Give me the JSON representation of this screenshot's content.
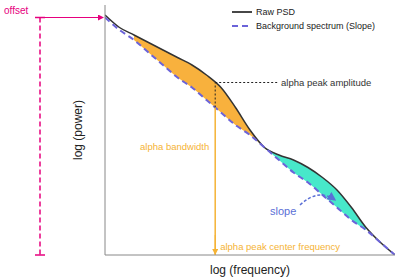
{
  "chart_data": {
    "type": "line",
    "x_label": "log (frequency)",
    "y_label": "log (power)",
    "x": [
      0,
      5,
      10,
      15,
      20,
      25,
      30,
      35,
      40,
      45,
      50,
      55,
      60,
      65,
      70,
      75,
      80,
      85,
      90,
      95,
      100
    ],
    "series": [
      {
        "name": "Raw PSD",
        "color": "#333333",
        "line_style": "solid",
        "values": [
          96,
          91,
          88,
          85,
          82,
          79,
          76,
          72,
          67,
          59,
          50,
          43,
          40,
          38,
          35,
          31,
          26,
          19,
          11,
          5,
          0
        ]
      },
      {
        "name": "Background spectrum (Slope)",
        "color": "#6b63d9",
        "line_style": "dashed",
        "values": [
          95,
          90,
          86,
          81,
          76,
          71,
          67,
          62,
          57,
          52,
          48,
          43,
          38,
          33,
          29,
          24,
          19,
          14,
          10,
          5,
          0
        ]
      }
    ],
    "xlim": [
      0,
      100
    ],
    "ylim": [
      0,
      100
    ],
    "tick_labels": false,
    "legend": "upper right",
    "bands": [
      {
        "from": 10,
        "to": 55,
        "color": "#f7a928"
      },
      {
        "from": 55,
        "to": 90,
        "color": "#33e6c4"
      }
    ],
    "alpha_peak": {
      "x": 38,
      "y": 69
    },
    "annotations": {
      "offset": "offset",
      "peak_amplitude": "alpha peak amplitude",
      "bandwidth": "alpha bandwidth",
      "center_frequency": "alpha peak center frequency",
      "slope": "slope"
    }
  }
}
